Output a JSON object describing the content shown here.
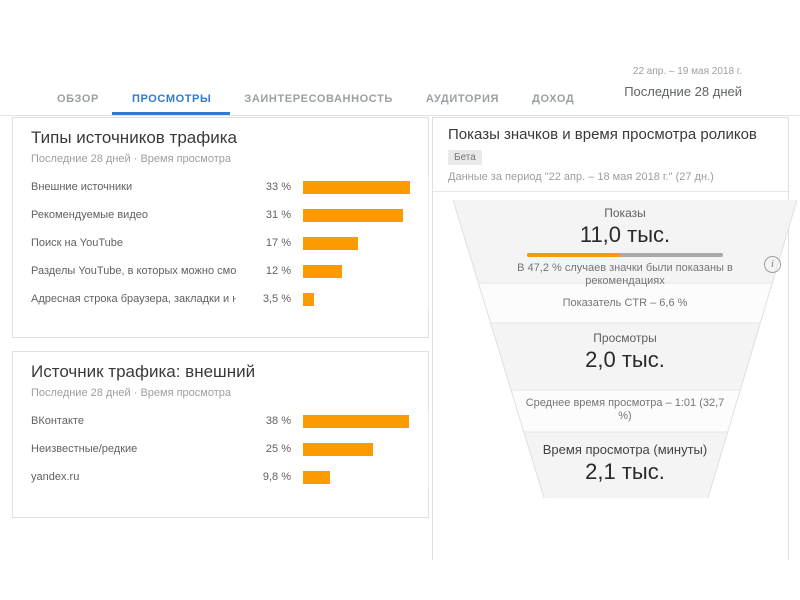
{
  "colors": {
    "orange": "#FA9B00",
    "blue": "#2E7CD0",
    "inactive_tab": "#9AA0A6"
  },
  "header": {
    "tabs": [
      {
        "label": "ОБЗОР",
        "active": false
      },
      {
        "label": "ПРОСМОТРЫ",
        "active": true
      },
      {
        "label": "ЗАИНТЕРЕСОВАННОСТЬ",
        "active": false
      },
      {
        "label": "АУДИТОРИЯ",
        "active": false
      },
      {
        "label": "ДОХОД",
        "active": false
      }
    ],
    "date_range": "22 апр. – 19 мая 2018 г.",
    "period": "Последние 28 дней"
  },
  "chart_data": [
    {
      "type": "bar",
      "orientation": "horizontal",
      "title": "Типы источников трафика",
      "subtitle": "Последние 28 дней · Время просмотра",
      "unit": "%",
      "rows": [
        {
          "label": "Внешние источники",
          "value": "33 %",
          "pct": 33
        },
        {
          "label": "Рекомендуемые видео",
          "value": "31 %",
          "pct": 31
        },
        {
          "label": "Поиск на YouTube",
          "value": "17 %",
          "pct": 17
        },
        {
          "label": "Разделы YouTube, в которых можно смо...",
          "value": "12 %",
          "pct": 12
        },
        {
          "label": "Адресная строка браузера, закладки и н...",
          "value": "3,5 %",
          "pct": 3.5
        }
      ]
    },
    {
      "type": "bar",
      "orientation": "horizontal",
      "title": "Источник трафика: внешний",
      "subtitle": "Последние 28 дней · Время просмотра",
      "unit": "%",
      "rows": [
        {
          "label": "ВКонтакте",
          "value": "38 %",
          "pct": 38
        },
        {
          "label": "Неизвестные/редкие",
          "value": "25 %",
          "pct": 25
        },
        {
          "label": "yandex.ru",
          "value": "9,8 %",
          "pct": 9.8
        }
      ]
    },
    {
      "type": "funnel",
      "title": "Показы значков и время просмотра роликов",
      "badge": "Бета",
      "period_note": "Данные за период \"22 апр. – 18 мая 2018 г.\" (27 дн.)",
      "stages": [
        {
          "label": "Показы",
          "value": "11,0 тыс.",
          "note": "В 47,2 % случаев значки были показаны в рекомендациях",
          "progress_pct": 47.2
        },
        {
          "label": "Просмотры",
          "value": "2,0 тыс."
        },
        {
          "label": "Время просмотра (минуты)",
          "value": "2,1 тыс."
        }
      ],
      "connectors": [
        "Показатель CTR – 6,6 %",
        "Среднее время просмотра – 1:01 (32,7 %)"
      ]
    }
  ]
}
